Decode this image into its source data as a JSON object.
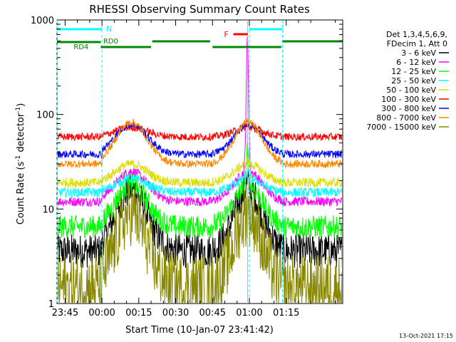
{
  "chart_data": {
    "type": "line",
    "title": "RHESSI Observing Summary Count Rates",
    "xlabel": "Start Time (10-Jan-07 23:41:42)",
    "ylabel_main": "Count Rate (s",
    "ylabel_sup1": "-1",
    "ylabel_mid": " detector",
    "ylabel_sup2": "-1",
    "ylabel_end": ")",
    "yscale": "log",
    "ylim": [
      1,
      1000
    ],
    "xlim_minutes": [
      -18.3,
      98.0
    ],
    "x_ticks": [
      {
        "label": "23:45",
        "min": -15
      },
      {
        "label": "00:00",
        "min": 0
      },
      {
        "label": "00:15",
        "min": 15
      },
      {
        "label": "00:30",
        "min": 30
      },
      {
        "label": "00:45",
        "min": 45
      },
      {
        "label": "01:00",
        "min": 60
      },
      {
        "label": "01:15",
        "min": 75
      }
    ],
    "y_ticks": [
      {
        "label": "1",
        "value": 1
      },
      {
        "label": "10",
        "value": 10
      },
      {
        "label": "100",
        "value": 100
      },
      {
        "label": "1000",
        "value": 1000
      }
    ],
    "legend": {
      "placement": "top-right",
      "header": [
        "Det 1,3,4,5,6,9,",
        "FDecim 1, Att 0"
      ]
    },
    "series": [
      {
        "name": "3 - 6 keV",
        "color": "#000000",
        "base": 3.6,
        "peak": 16,
        "flare_peak": 19,
        "noise": 0.18
      },
      {
        "name": "6 - 12 keV",
        "color": "#ff00ff",
        "base": 12,
        "peak": 25,
        "flare_peak": 650,
        "noise": 0.05
      },
      {
        "name": "12 - 25 keV",
        "color": "#00ff00",
        "base": 6.5,
        "peak": 18,
        "flare_peak": 40,
        "noise": 0.12
      },
      {
        "name": "25 - 50 keV",
        "color": "#00ffff",
        "base": 15,
        "peak": 21,
        "flare_peak": 25,
        "noise": 0.05
      },
      {
        "name": "50 - 100 keV",
        "color": "#dddd00",
        "base": 19,
        "peak": 30,
        "flare_peak": 32,
        "noise": 0.05
      },
      {
        "name": "100 - 300 keV",
        "color": "#ff0000",
        "base": 58,
        "peak": 73,
        "flare_peak": 76,
        "noise": 0.04
      },
      {
        "name": "300 - 800 keV",
        "color": "#0000ff",
        "base": 38,
        "peak": 79,
        "flare_peak": 81,
        "noise": 0.04
      },
      {
        "name": "800 - 7000 keV",
        "color": "#ff8800",
        "base": 30,
        "peak": 83,
        "flare_peak": 85,
        "noise": 0.04
      },
      {
        "name": "7000 - 15000 keV",
        "color": "#888800",
        "base": 1.5,
        "peak": 9,
        "flare_peak": 9,
        "noise": 0.35
      }
    ],
    "orbit_bounds_min": [
      -18.3,
      0,
      45,
      73.5,
      98.0
    ],
    "night_intervals_min": [
      [
        -18.3,
        0
      ],
      [
        60,
        73.5
      ]
    ],
    "saa_periods": [],
    "annotations": {
      "night_label": "N",
      "flare_label": "F",
      "rd4_label": "RD4",
      "rd0_label": "RD0"
    },
    "timestamp": "13-Oct-2021 17:15"
  }
}
